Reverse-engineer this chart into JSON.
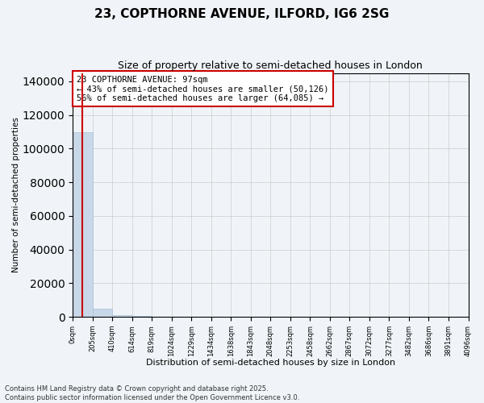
{
  "title": "23, COPTHORNE AVENUE, ILFORD, IG6 2SG",
  "subtitle": "Size of property relative to semi-detached houses in London",
  "xlabel": "Distribution of semi-detached houses by size in London",
  "ylabel": "Number of semi-detached properties",
  "annotation_line1": "23 COPTHORNE AVENUE: 97sqm",
  "annotation_line2": "← 43% of semi-detached houses are smaller (50,126)",
  "annotation_line3": "56% of semi-detached houses are larger (64,085) →",
  "footnote1": "Contains HM Land Registry data © Crown copyright and database right 2025.",
  "footnote2": "Contains public sector information licensed under the Open Government Licence v3.0.",
  "bar_color": "#c8d8e8",
  "bar_edge_color": "#a8c0d8",
  "vline_color": "#cc0000",
  "annotation_box_color": "#cc0000",
  "grid_color": "#cccccc",
  "background_color": "#f0f4f8",
  "xlim": [
    0,
    4096
  ],
  "ylim": [
    0,
    145000
  ],
  "yticks": [
    0,
    20000,
    40000,
    60000,
    80000,
    100000,
    120000,
    140000
  ],
  "property_size": 97,
  "bin_edges": [
    0,
    205,
    410,
    614,
    819,
    1024,
    1229,
    1434,
    1638,
    1843,
    2048,
    2253,
    2458,
    2662,
    2867,
    3072,
    3277,
    3482,
    3686,
    3891,
    4096
  ],
  "bar_heights": [
    110000,
    5000,
    800,
    300,
    150,
    100,
    70,
    50,
    40,
    30,
    25,
    20,
    15,
    12,
    10,
    8,
    6,
    5,
    4,
    3
  ]
}
